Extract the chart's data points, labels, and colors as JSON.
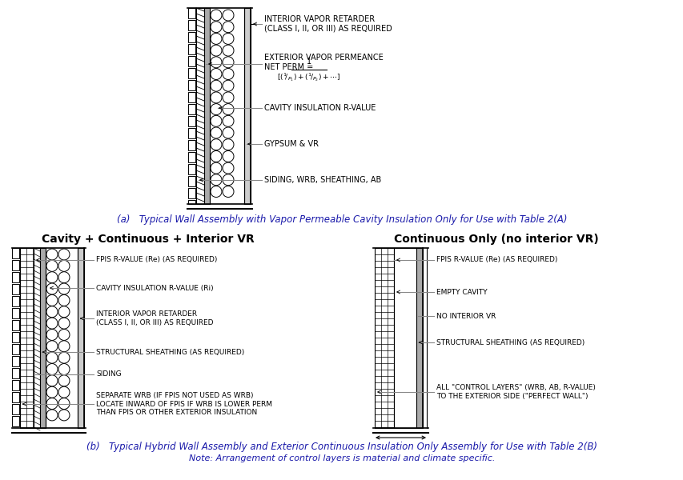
{
  "bg_color": "#ffffff",
  "line_color": "#000000",
  "gray_color": "#888888",
  "title_color_a": "#1a1aaa",
  "title_color_b": "#1a1aaa",
  "top_caption": "(a)   Typical Wall Assembly with Vapor Permeable Cavity Insulation Only for Use with Table 2(A)",
  "bottom_caption_line1": "(b)   Typical Hybrid Wall Assembly and Exterior Continuous Insulation Only Assembly for Use with Table 2(B)",
  "bottom_caption_line2": "Note: Arrangement of control layers is material and climate specific.",
  "left_heading": "Cavity + Continuous + Interior VR",
  "right_heading": "Continuous Only (no interior VR)"
}
